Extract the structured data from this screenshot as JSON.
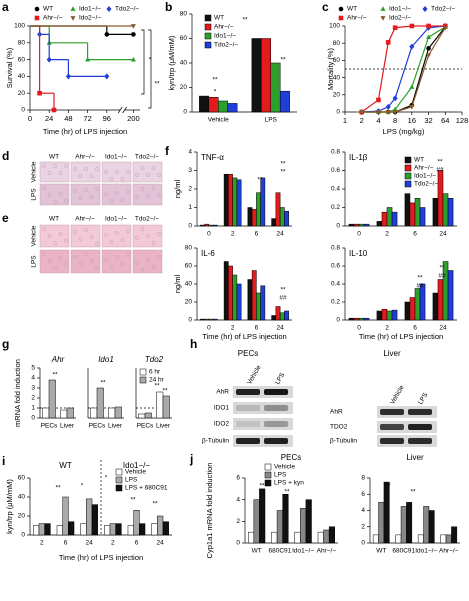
{
  "chart_data": [
    {
      "panel": "a",
      "type": "line",
      "step": true,
      "ylabel": "Survival (%)",
      "xlabel": "Time (hr) of LPS injection",
      "xlim": [
        0,
        210
      ],
      "xbreak": [
        110,
        190
      ],
      "xticks": [
        0,
        24,
        48,
        72,
        96,
        200
      ],
      "ylim": [
        0,
        100
      ],
      "yticks": [
        0,
        20,
        40,
        60,
        80,
        100
      ],
      "series": [
        {
          "name": "WT",
          "color": "#000000",
          "marker": "circle",
          "x": [
            0,
            96,
            200
          ],
          "values": [
            100,
            90,
            90
          ]
        },
        {
          "name": "Ido1−/−",
          "color": "#2ca02c",
          "marker": "triangle",
          "x": [
            0,
            24,
            72,
            200
          ],
          "values": [
            100,
            80,
            60,
            60
          ]
        },
        {
          "name": "Tdo2−/−",
          "color": "#1f3fd8",
          "marker": "diamond",
          "x": [
            0,
            12,
            24,
            48,
            96
          ],
          "values": [
            100,
            90,
            60,
            40,
            40
          ]
        },
        {
          "name": "Ahr−/−",
          "color": "#e41a1c",
          "marker": "square",
          "x": [
            0,
            12,
            30
          ],
          "values": [
            100,
            20,
            0
          ]
        },
        {
          "name": "Ido2−/−",
          "color": "#8b5a2b",
          "marker": "triangle-down",
          "x": [
            0,
            200
          ],
          "values": [
            100,
            100
          ]
        }
      ],
      "annotations": [
        "*",
        "**"
      ]
    },
    {
      "panel": "b",
      "type": "bar",
      "ylabel": "kyn/trp (μM/mM)",
      "categories": [
        "Vehicle",
        "LPS"
      ],
      "ylim": [
        0,
        80
      ],
      "yticks": [
        0,
        20,
        40,
        60,
        80
      ],
      "series": [
        {
          "name": "WT",
          "color": "#111111",
          "values": [
            13,
            60
          ]
        },
        {
          "name": "Ahr−/−",
          "color": "#e41a1c",
          "values": [
            12,
            60
          ]
        },
        {
          "name": "Ido1−/−",
          "color": "#2ca02c",
          "values": [
            9,
            40
          ]
        },
        {
          "name": "Tdo2−/−",
          "color": "#1f3fd8",
          "values": [
            7,
            17
          ]
        }
      ],
      "annotations": [
        "**",
        "*",
        "**",
        "**"
      ]
    },
    {
      "panel": "c",
      "type": "line",
      "xscale": "log",
      "xlabel": "LPS (mg/kg)",
      "ylabel": "Mortality (%)",
      "xlim": [
        1,
        128
      ],
      "xticks": [
        1,
        2,
        4,
        8,
        16,
        32,
        64,
        128
      ],
      "ylim": [
        0,
        100
      ],
      "yticks": [
        0,
        20,
        40,
        60,
        80,
        100
      ],
      "refline": 50,
      "x": [
        2,
        4,
        6,
        8,
        16,
        32,
        64
      ],
      "series": [
        {
          "name": "WT",
          "color": "#000000",
          "marker": "circle",
          "values": [
            0,
            0,
            0,
            0,
            8,
            74,
            99
          ]
        },
        {
          "name": "Ido1−/−",
          "color": "#2ca02c",
          "marker": "triangle",
          "values": [
            0,
            0,
            0,
            3,
            29,
            87,
            99
          ]
        },
        {
          "name": "Tdo2−/−",
          "color": "#1f3fd8",
          "marker": "diamond",
          "values": [
            0,
            1,
            6,
            16,
            76,
            98,
            100
          ]
        },
        {
          "name": "Ahr−/−",
          "color": "#e41a1c",
          "marker": "square",
          "values": [
            0,
            14,
            81,
            98,
            100,
            100,
            100
          ]
        },
        {
          "name": "Ido2−/−",
          "color": "#8b5a2b",
          "marker": "triangle-down",
          "values": [
            0,
            0,
            0,
            0,
            6,
            66,
            98
          ]
        }
      ]
    },
    {
      "panel": "f",
      "type": "bar",
      "title": "TNF-α",
      "ylabel": "ng/ml",
      "categories": [
        "0",
        "2",
        "6",
        "24"
      ],
      "ylim": [
        0,
        4
      ],
      "yticks": [
        0,
        1,
        2,
        3,
        4
      ],
      "series": [
        {
          "color": "#111111",
          "values": [
            0.05,
            2.8,
            1.0,
            0.4
          ]
        },
        {
          "color": "#e41a1c",
          "values": [
            0.1,
            2.8,
            0.9,
            1.8
          ]
        },
        {
          "color": "#2ca02c",
          "values": [
            0.05,
            2.6,
            1.8,
            1.0
          ]
        },
        {
          "color": "#1f3fd8",
          "values": [
            0.05,
            2.5,
            2.6,
            0.8
          ]
        }
      ],
      "annotations": [
        "**",
        "**",
        "**"
      ]
    },
    {
      "type": "bar",
      "title": "IL-1β",
      "categories": [
        "0",
        "2",
        "6",
        "24"
      ],
      "ylim": [
        0,
        0.8
      ],
      "yticks": [
        0,
        0.2,
        0.4,
        0.6,
        0.8
      ],
      "series": [
        {
          "name": "WT",
          "color": "#111111",
          "values": [
            0.02,
            0.05,
            0.35,
            0.3
          ]
        },
        {
          "name": "Ahr−/−",
          "color": "#e41a1c",
          "values": [
            0.02,
            0.15,
            0.25,
            0.6
          ]
        },
        {
          "name": "Ido1−/−",
          "color": "#2ca02c",
          "values": [
            0.02,
            0.2,
            0.3,
            0.35
          ]
        },
        {
          "name": "Tdo2−/−",
          "color": "#1f3fd8",
          "values": [
            0.02,
            0.15,
            0.2,
            0.3
          ]
        }
      ],
      "annotations": [
        "**",
        "##"
      ]
    },
    {
      "type": "bar",
      "title": "IL-6",
      "ylabel": "ng/ml",
      "xlabel": "Time (hr) of LPS injection",
      "categories": [
        "0",
        "2",
        "6",
        "24"
      ],
      "ylim": [
        0,
        80
      ],
      "yticks": [
        0,
        20,
        40,
        60,
        80
      ],
      "series": [
        {
          "color": "#111111",
          "values": [
            1,
            65,
            45,
            5
          ]
        },
        {
          "color": "#e41a1c",
          "values": [
            1,
            60,
            55,
            15
          ]
        },
        {
          "color": "#2ca02c",
          "values": [
            1,
            50,
            30,
            8
          ]
        },
        {
          "color": "#1f3fd8",
          "values": [
            1,
            40,
            38,
            10
          ]
        }
      ],
      "annotations": [
        "**",
        "##"
      ]
    },
    {
      "type": "bar",
      "title": "IL-10",
      "xlabel": "Time (hr) of LPS injection",
      "categories": [
        "0",
        "2",
        "6",
        "24"
      ],
      "ylim": [
        0,
        0.8
      ],
      "yticks": [
        0,
        0.2,
        0.4,
        0.6,
        0.8
      ],
      "series": [
        {
          "color": "#111111",
          "values": [
            0.02,
            0.1,
            0.2,
            0.3
          ]
        },
        {
          "color": "#e41a1c",
          "values": [
            0.02,
            0.12,
            0.25,
            0.45
          ]
        },
        {
          "color": "#2ca02c",
          "values": [
            0.02,
            0.1,
            0.35,
            0.65
          ]
        },
        {
          "color": "#1f3fd8",
          "values": [
            0.02,
            0.11,
            0.4,
            0.55
          ]
        }
      ],
      "annotations": [
        "**",
        "**",
        "##",
        "##"
      ]
    },
    {
      "panel": "g",
      "type": "bar",
      "title": "Ahr",
      "title_style": "italic",
      "ylabel": "mRNA fold induction",
      "categories": [
        "PECs",
        "Liver"
      ],
      "ylim": [
        0,
        5
      ],
      "yticks": [
        0,
        1,
        2,
        3,
        4,
        5
      ],
      "refline": 1,
      "series": [
        {
          "color": "#ffffff",
          "values": [
            1,
            0.8
          ]
        },
        {
          "color": "#aaaaaa",
          "values": [
            3.8,
            1
          ]
        }
      ],
      "annotations": [
        "**"
      ]
    },
    {
      "type": "bar",
      "title": "Ido1",
      "title_style": "italic",
      "categories": [
        "PECs",
        "Liver"
      ],
      "ylim": [
        0,
        5
      ],
      "refline": 1,
      "series": [
        {
          "color": "#ffffff",
          "values": [
            1,
            1
          ]
        },
        {
          "color": "#aaaaaa",
          "values": [
            3,
            1.1
          ]
        }
      ],
      "annotations": [
        "**"
      ]
    },
    {
      "type": "bar",
      "title": "Tdo2",
      "title_style": "italic",
      "categories": [
        "PECs",
        "Liver"
      ],
      "ylim": [
        0,
        5
      ],
      "refline": 1,
      "series": [
        {
          "name": "6 hr",
          "color": "#ffffff",
          "values": [
            0.4,
            2.6
          ]
        },
        {
          "name": "24 hr",
          "color": "#aaaaaa",
          "values": [
            0.5,
            2.2
          ]
        }
      ],
      "annotations": [
        "**",
        "**"
      ]
    },
    {
      "panel": "i",
      "type": "bar",
      "ylabel": "kyn/trp (μM/mM)",
      "xlabel": "Time (hr) of LPS injection",
      "categories": [
        "2",
        "6",
        "24",
        "2",
        "6",
        "24"
      ],
      "groups": [
        "WT",
        "Ido1−/−"
      ],
      "ylim": [
        0,
        60
      ],
      "yticks": [
        0,
        20,
        40,
        60
      ],
      "series": [
        {
          "name": "Vehicle",
          "color": "#ffffff",
          "values": [
            10,
            10,
            12,
            10,
            10,
            12
          ]
        },
        {
          "name": "LPS",
          "color": "#aaaaaa",
          "values": [
            12,
            40,
            38,
            12,
            26,
            20
          ]
        },
        {
          "name": "LPS + 680C91",
          "color": "#111111",
          "values": [
            12,
            14,
            32,
            12,
            12,
            14
          ]
        }
      ],
      "annotations": [
        "**",
        "*",
        "*",
        "**",
        "**"
      ]
    },
    {
      "panel": "j",
      "type": "bar",
      "title": "PECs",
      "ylabel": "Cyp1a1 mRNA fold induction",
      "categories": [
        "WT",
        "680C91",
        "Ido1−/−",
        "Ahr−/−"
      ],
      "ylim": [
        0,
        6
      ],
      "yticks": [
        0,
        2,
        4,
        6
      ],
      "series": [
        {
          "name": "Vehicle",
          "color": "#ffffff",
          "values": [
            1,
            1,
            1,
            1
          ]
        },
        {
          "name": "LPS",
          "color": "#888888",
          "values": [
            4,
            3,
            3.2,
            1.2
          ]
        },
        {
          "name": "LPS + kyn",
          "color": "#111111",
          "values": [
            5,
            4.5,
            4,
            1.5
          ]
        }
      ],
      "annotations": [
        "**",
        "**"
      ]
    },
    {
      "type": "bar",
      "title": "Liver",
      "categories": [
        "WT",
        "680C91",
        "Ido1−/−",
        "Ahr−/−"
      ],
      "ylim": [
        0,
        8
      ],
      "yticks": [
        0,
        2,
        4,
        6,
        8
      ],
      "series": [
        {
          "color": "#ffffff",
          "values": [
            1,
            1,
            1,
            1
          ]
        },
        {
          "color": "#888888",
          "values": [
            5,
            4.5,
            4.5,
            1
          ]
        },
        {
          "color": "#111111",
          "values": [
            7.5,
            5,
            4,
            2
          ]
        }
      ],
      "annotations": [
        "**",
        "**"
      ]
    }
  ],
  "micrographs": [
    {
      "panel": "d",
      "columns": [
        "WT",
        "Ahr−/−",
        "Ido1−/−",
        "Tdo2−/−"
      ],
      "rows": [
        "Vehicle",
        "LPS"
      ]
    },
    {
      "panel": "e",
      "columns": [
        "WT",
        "Ahr−/−",
        "Ido1−/−",
        "Tdo2−/−"
      ],
      "rows": [
        "Vehicle",
        "LPS"
      ]
    }
  ],
  "blot": {
    "panel": "h",
    "groups": [
      {
        "label": "PECs",
        "lanes": [
          "Vehicle",
          "LPS"
        ],
        "proteins": [
          "AhR",
          "IDO1",
          "IDO2",
          "β-Tubulin"
        ]
      },
      {
        "label": "Liver",
        "lanes": [
          "Vehicle",
          "LPS"
        ],
        "proteins": [
          "AhR",
          "TDO2",
          "β-Tubulin"
        ]
      }
    ]
  }
}
